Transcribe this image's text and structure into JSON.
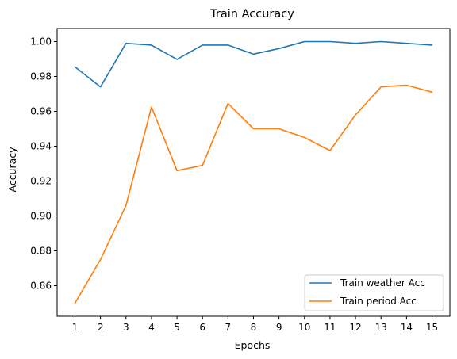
{
  "chart_data": {
    "type": "line",
    "title": "Train Accuracy",
    "xlabel": "Epochs",
    "ylabel": "Accuracy",
    "x": [
      1,
      2,
      3,
      4,
      5,
      6,
      7,
      8,
      9,
      10,
      11,
      12,
      13,
      14,
      15
    ],
    "x_tick_labels": [
      "1",
      "2",
      "3",
      "4",
      "5",
      "6",
      "7",
      "8",
      "9",
      "10",
      "11",
      "12",
      "13",
      "14",
      "15"
    ],
    "y_ticks": [
      0.86,
      0.88,
      0.9,
      0.92,
      0.94,
      0.96,
      0.98,
      1.0
    ],
    "y_tick_labels": [
      "0.86",
      "0.88",
      "0.90",
      "0.92",
      "0.94",
      "0.96",
      "0.98",
      "1.00"
    ],
    "xlim": [
      0.3,
      15.7
    ],
    "ylim": [
      0.8425,
      1.0075
    ],
    "grid": false,
    "legend_position": "lower-right",
    "series": [
      {
        "name": "Train weather Acc",
        "color": "#1f77b4",
        "values": [
          0.9855,
          0.974,
          0.999,
          0.998,
          0.9898,
          0.998,
          0.998,
          0.9928,
          0.996,
          1.0,
          1.0,
          0.999,
          1.0,
          0.999,
          0.998
        ]
      },
      {
        "name": "Train period Acc",
        "color": "#ff7f0e",
        "values": [
          0.85,
          0.875,
          0.906,
          0.9625,
          0.926,
          0.929,
          0.9645,
          0.95,
          0.95,
          0.945,
          0.9375,
          0.958,
          0.974,
          0.975,
          0.971
        ]
      }
    ]
  }
}
